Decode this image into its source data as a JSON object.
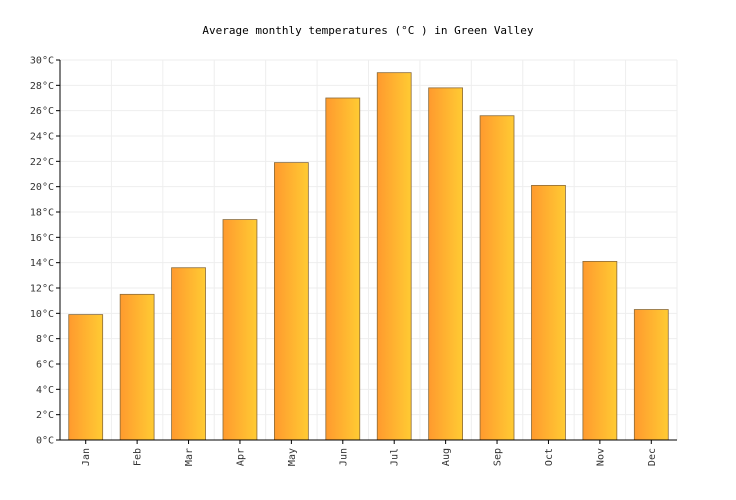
{
  "chart_data": {
    "type": "bar",
    "title": "Average monthly temperatures (°C ) in Green Valley",
    "categories": [
      "Jan",
      "Feb",
      "Mar",
      "Apr",
      "May",
      "Jun",
      "Jul",
      "Aug",
      "Sep",
      "Oct",
      "Nov",
      "Dec"
    ],
    "values": [
      9.9,
      11.5,
      13.6,
      17.4,
      21.9,
      27.0,
      29.0,
      27.8,
      25.6,
      20.1,
      14.1,
      10.3
    ],
    "ylim": [
      0,
      30
    ],
    "yticks": [
      "0°C",
      "2°C",
      "4°C",
      "6°C",
      "8°C",
      "10°C",
      "12°C",
      "14°C",
      "16°C",
      "18°C",
      "20°C",
      "22°C",
      "24°C",
      "26°C",
      "28°C",
      "30°C"
    ],
    "xlabel": "",
    "ylabel": "",
    "grid": true,
    "bar_gradient": [
      "#ff9a2e",
      "#ffcb33"
    ]
  }
}
